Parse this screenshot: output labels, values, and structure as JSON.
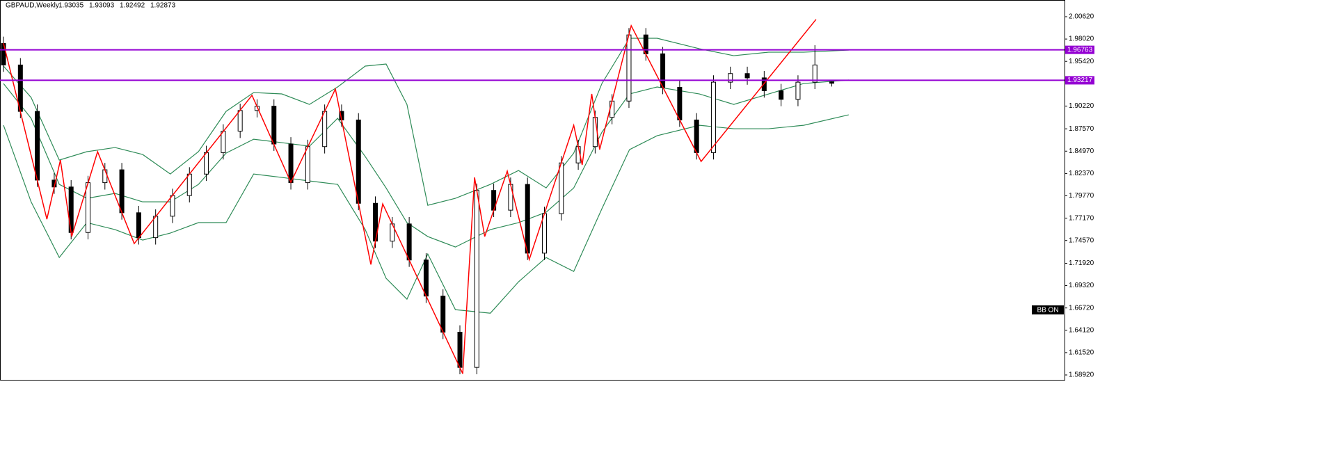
{
  "chart_data": {
    "type": "candlestick",
    "symbol": "GBPAUD,Weekly",
    "ylim": [
      1.58273,
      2.02563
    ],
    "xlim": [
      -0.62,
      188.3
    ],
    "yticks": [
      {
        "value": 2.0062,
        "label": "2.00620"
      },
      {
        "value": 1.9802,
        "label": "1.98020"
      },
      {
        "value": 1.9542,
        "label": "1.95420"
      },
      {
        "value": 1.9022,
        "label": "1.90220"
      },
      {
        "value": 1.8757,
        "label": "1.87570"
      },
      {
        "value": 1.8497,
        "label": "1.84970"
      },
      {
        "value": 1.8237,
        "label": "1.82370"
      },
      {
        "value": 1.7977,
        "label": "1.79770"
      },
      {
        "value": 1.7717,
        "label": "1.77170"
      },
      {
        "value": 1.7457,
        "label": "1.74570"
      },
      {
        "value": 1.7192,
        "label": "1.71920"
      },
      {
        "value": 1.6932,
        "label": "1.69320"
      },
      {
        "value": 1.6672,
        "label": "1.66720"
      },
      {
        "value": 1.6412,
        "label": "1.64120"
      },
      {
        "value": 1.6152,
        "label": "1.61520"
      },
      {
        "value": 1.5892,
        "label": "1.58920"
      }
    ],
    "candles": {
      "x": [
        0,
        3,
        6,
        9,
        12,
        15,
        18,
        21,
        24,
        27,
        30,
        33,
        36,
        39,
        42,
        45,
        48,
        51,
        54,
        57,
        60,
        63,
        66,
        69,
        72,
        75,
        78,
        81,
        84,
        87,
        90,
        93,
        96,
        99,
        102,
        105,
        108,
        111,
        114,
        117,
        120,
        123,
        126,
        129,
        132,
        135,
        138,
        141,
        144,
        147
      ],
      "ohlc": [
        [
          1.975,
          1.983,
          1.942,
          1.95
        ],
        [
          1.95,
          1.958,
          1.888,
          1.896
        ],
        [
          1.896,
          1.904,
          1.808,
          1.816
        ],
        [
          1.816,
          1.824,
          1.8,
          1.808
        ],
        [
          1.808,
          1.816,
          1.747,
          1.755
        ],
        [
          1.755,
          1.821,
          1.747,
          1.813
        ],
        [
          1.813,
          1.836,
          1.805,
          1.828
        ],
        [
          1.828,
          1.836,
          1.77,
          1.778
        ],
        [
          1.778,
          1.786,
          1.741,
          1.749
        ],
        [
          1.749,
          1.782,
          1.741,
          1.774
        ],
        [
          1.774,
          1.806,
          1.766,
          1.798
        ],
        [
          1.798,
          1.831,
          1.79,
          1.823
        ],
        [
          1.823,
          1.856,
          1.815,
          1.848
        ],
        [
          1.848,
          1.881,
          1.84,
          1.873
        ],
        [
          1.873,
          1.905,
          1.865,
          1.897
        ],
        [
          1.897,
          1.91,
          1.889,
          1.902
        ],
        [
          1.902,
          1.91,
          1.85,
          1.858
        ],
        [
          1.858,
          1.866,
          1.805,
          1.813
        ],
        [
          1.813,
          1.863,
          1.805,
          1.855
        ],
        [
          1.855,
          1.904,
          1.847,
          1.896
        ],
        [
          1.896,
          1.904,
          1.878,
          1.886
        ],
        [
          1.886,
          1.894,
          1.781,
          1.789
        ],
        [
          1.789,
          1.797,
          1.737,
          1.745
        ],
        [
          1.745,
          1.773,
          1.737,
          1.765
        ],
        [
          1.765,
          1.773,
          1.715,
          1.723
        ],
        [
          1.723,
          1.731,
          1.673,
          1.681
        ],
        [
          1.681,
          1.689,
          1.631,
          1.639
        ],
        [
          1.639,
          1.647,
          1.59,
          1.598
        ],
        [
          1.598,
          1.812,
          1.59,
          1.804
        ],
        [
          1.804,
          1.812,
          1.773,
          1.781
        ],
        [
          1.781,
          1.819,
          1.773,
          1.811
        ],
        [
          1.811,
          1.819,
          1.723,
          1.731
        ],
        [
          1.731,
          1.785,
          1.723,
          1.777
        ],
        [
          1.777,
          1.844,
          1.769,
          1.836
        ],
        [
          1.836,
          1.863,
          1.828,
          1.855
        ],
        [
          1.855,
          1.897,
          1.847,
          1.889
        ],
        [
          1.889,
          1.916,
          1.881,
          1.908
        ],
        [
          1.908,
          1.993,
          1.9,
          1.985
        ],
        [
          1.985,
          1.993,
          1.955,
          1.963
        ],
        [
          1.963,
          1.971,
          1.916,
          1.924
        ],
        [
          1.924,
          1.932,
          1.878,
          1.886
        ],
        [
          1.886,
          1.894,
          1.84,
          1.848
        ],
        [
          1.848,
          1.938,
          1.84,
          1.93
        ],
        [
          1.93,
          1.948,
          1.922,
          1.94
        ],
        [
          1.94,
          1.948,
          1.927,
          1.935
        ],
        [
          1.935,
          1.943,
          1.912,
          1.92
        ],
        [
          1.92,
          1.928,
          1.902,
          1.91
        ],
        [
          1.91,
          1.938,
          1.902,
          1.93
        ],
        [
          1.93,
          1.973,
          1.922,
          1.95
        ],
        [
          1.93035,
          1.93093,
          1.92492,
          1.92873
        ]
      ]
    },
    "zigzag": {
      "color": "#ff0000",
      "x": [
        0,
        7.7,
        10.1,
        12.1,
        16.7,
        23.2,
        44.1,
        51,
        58.9,
        61.7,
        65.2,
        67.3,
        81.5,
        83.6,
        85.4,
        89.4,
        93.3,
        101.2,
        102.7,
        104.4,
        105.8,
        111.4,
        123.8,
        144.2
      ],
      "values": [
        1.9754,
        1.7705,
        1.8393,
        1.7503,
        1.8491,
        1.7421,
        1.9147,
        1.8134,
        1.922,
        1.8312,
        1.7178,
        1.7883,
        1.5907,
        1.8191,
        1.7503,
        1.8264,
        1.7235,
        1.8798,
        1.8337,
        1.9163,
        1.8515,
        1.9957,
        1.8377,
        2.003
      ]
    },
    "bands": {
      "color": "#2e8b57",
      "x": [
        0,
        4.9,
        9.9,
        14.8,
        19.8,
        24.7,
        29.6,
        34.6,
        39.5,
        44.4,
        49.4,
        54.3,
        59.3,
        64.2,
        67.9,
        71.6,
        75.3,
        80.2,
        86.4,
        91.4,
        96.3,
        101.2,
        106.2,
        111.1,
        116,
        123.5,
        129.6,
        135.8,
        142,
        150
      ],
      "upper": [
        1.9487,
        1.9122,
        1.8393,
        1.8491,
        1.8539,
        1.8458,
        1.8231,
        1.8491,
        1.896,
        1.9179,
        1.9163,
        1.9041,
        1.9244,
        1.9487,
        1.9511,
        1.9041,
        1.7867,
        1.7948,
        1.811,
        1.8272,
        1.8069,
        1.8474,
        1.9284,
        1.9811,
        1.9811,
        1.9689,
        1.9608,
        1.9649,
        1.9649,
        1.9673
      ],
      "middle": [
        1.9284,
        1.8879,
        1.811,
        1.7948,
        1.8005,
        1.7907,
        1.7907,
        1.811,
        1.8474,
        1.8636,
        1.8596,
        1.8555,
        1.8879,
        1.8434,
        1.8069,
        1.7665,
        1.7503,
        1.7381,
        1.7584,
        1.7665,
        1.7786,
        1.8069,
        1.8717,
        1.9163,
        1.9244,
        1.9163,
        1.9041,
        1.9163,
        1.9284,
        1.9325
      ],
      "lower": [
        1.8798,
        1.7907,
        1.7259,
        1.7665,
        1.7584,
        1.7462,
        1.7543,
        1.7665,
        1.7665,
        1.8231,
        1.8191,
        1.815,
        1.811,
        1.7584,
        1.7017,
        1.6774,
        1.73,
        1.6652,
        1.6611,
        1.6976,
        1.7259,
        1.7097,
        1.7827,
        1.8515,
        1.8677,
        1.8798,
        1.8758,
        1.8758,
        1.8798,
        1.892
      ]
    },
    "levels": {
      "color": "#9400d3",
      "values": [
        1.96763,
        1.93217
      ]
    },
    "indicator_label": "BB ON"
  }
}
